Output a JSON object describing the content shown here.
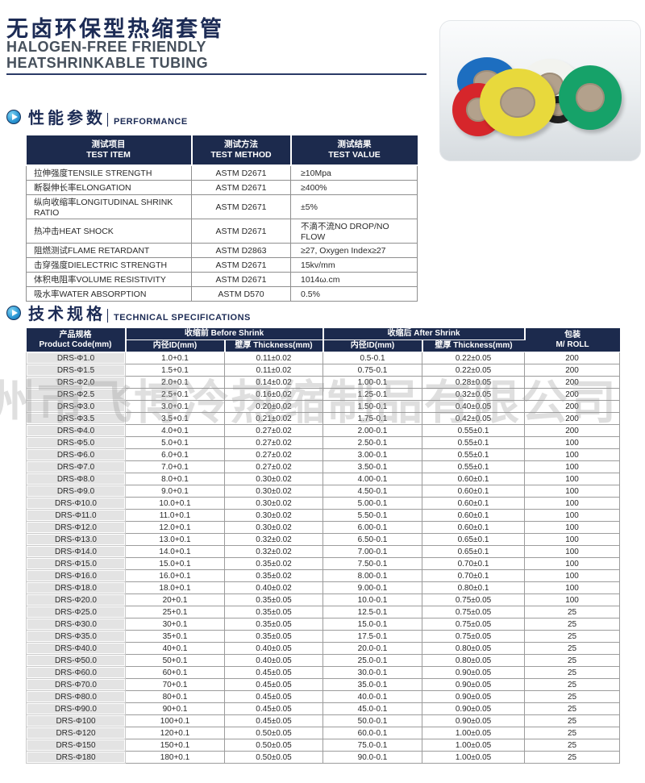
{
  "page": {
    "title_cn": "无卤环保型热缩套管",
    "subtitle_line1": "HALOGEN-FREE FRIENDLY",
    "subtitle_line2": "HEATSHRINKABLE TUBING",
    "watermark": "州市飞博冷热缩制品有限公司"
  },
  "colors": {
    "navy_header": "#1c2a4d",
    "title_navy": "#1c2b55",
    "accent_blue": "#2f9ad6",
    "first_col_gray": "#e3e3e3"
  },
  "sections": {
    "performance": {
      "title_cn": "性能参数",
      "title_en": "PERFORMANCE"
    },
    "specs": {
      "title_cn": "技术规格",
      "title_en": "TECHNICAL SPECIFICATIONS"
    }
  },
  "performance_table": {
    "headers": [
      {
        "cn": "测试项目",
        "en": "TEST ITEM"
      },
      {
        "cn": "测试方法",
        "en": "TEST METHOD"
      },
      {
        "cn": "测试结果",
        "en": "TEST VALUE"
      }
    ],
    "rows": [
      [
        "拉伸强度TENSILE STRENGTH",
        "ASTM D2671",
        "≥10Mpa"
      ],
      [
        "断裂伸长率ELONGATION",
        "ASTM D2671",
        "≥400%"
      ],
      [
        "纵向收缩率LONGITUDINAL SHRINK RATIO",
        "ASTM D2671",
        "±5%"
      ],
      [
        "热冲击HEAT SHOCK",
        "ASTM D2671",
        "不滴不流NO DROP/NO FLOW"
      ],
      [
        "阻燃测试FLAME RETARDANT",
        "ASTM D2863",
        "≥27, Oxygen Index≥27"
      ],
      [
        "击穿强度DIELECTRIC STRENGTH",
        "ASTM D2671",
        "15kv/mm"
      ],
      [
        "体积电阻率VOLUME RESISTIVITY",
        "ASTM D2671",
        "1014ω.cm"
      ],
      [
        "吸水率WATER ABSORPTION",
        "ASTM D570",
        "0.5%"
      ]
    ]
  },
  "spec_table": {
    "header": {
      "product_code_cn": "产品规格",
      "product_code_en": "Product Code(mm)",
      "before_shrink": "收缩前 Before Shrink",
      "after_shrink": "收缩后 After Shrink",
      "id_label": "内径ID(mm)",
      "thickness_label": "壁厚 Thickness(mm)",
      "package_cn": "包装",
      "package_en": "M/ ROLL"
    },
    "rows": [
      [
        "DRS-Φ1.0",
        "1.0+0.1",
        "0.11±0.02",
        "0.5-0.1",
        "0.22±0.05",
        "200"
      ],
      [
        "DRS-Φ1.5",
        "1.5+0.1",
        "0.11±0.02",
        "0.75-0.1",
        "0.22±0.05",
        "200"
      ],
      [
        "DRS-Φ2.0",
        "2.0+0.1",
        "0.14±0.02",
        "1.00-0.1",
        "0.28±0.05",
        "200"
      ],
      [
        "DRS-Φ2.5",
        "2.5+0.1",
        "0.16±0.02",
        "1.25-0.1",
        "0.32±0.05",
        "200"
      ],
      [
        "DRS-Φ3.0",
        "3.0+0.1",
        "0.20±0.02",
        "1.50-0.1",
        "0.40±0.05",
        "200"
      ],
      [
        "DRS-Φ3.5",
        "3.5+0.1",
        "0.21±0.02",
        "1.75-0.1",
        "0.42±0.05",
        "200"
      ],
      [
        "DRS-Φ4.0",
        "4.0+0.1",
        "0.27±0.02",
        "2.00-0.1",
        "0.55±0.1",
        "200"
      ],
      [
        "DRS-Φ5.0",
        "5.0+0.1",
        "0.27±0.02",
        "2.50-0.1",
        "0.55±0.1",
        "100"
      ],
      [
        "DRS-Φ6.0",
        "6.0+0.1",
        "0.27±0.02",
        "3.00-0.1",
        "0.55±0.1",
        "100"
      ],
      [
        "DRS-Φ7.0",
        "7.0+0.1",
        "0.27±0.02",
        "3.50-0.1",
        "0.55±0.1",
        "100"
      ],
      [
        "DRS-Φ8.0",
        "8.0+0.1",
        "0.30±0.02",
        "4.00-0.1",
        "0.60±0.1",
        "100"
      ],
      [
        "DRS-Φ9.0",
        "9.0+0.1",
        "0.30±0.02",
        "4.50-0.1",
        "0.60±0.1",
        "100"
      ],
      [
        "DRS-Φ10.0",
        "10.0+0.1",
        "0.30±0.02",
        "5.00-0.1",
        "0.60±0.1",
        "100"
      ],
      [
        "DRS-Φ11.0",
        "11.0+0.1",
        "0.30±0.02",
        "5.50-0.1",
        "0.60±0.1",
        "100"
      ],
      [
        "DRS-Φ12.0",
        "12.0+0.1",
        "0.30±0.02",
        "6.00-0.1",
        "0.60±0.1",
        "100"
      ],
      [
        "DRS-Φ13.0",
        "13.0+0.1",
        "0.32±0.02",
        "6.50-0.1",
        "0.65±0.1",
        "100"
      ],
      [
        "DRS-Φ14.0",
        "14.0+0.1",
        "0.32±0.02",
        "7.00-0.1",
        "0.65±0.1",
        "100"
      ],
      [
        "DRS-Φ15.0",
        "15.0+0.1",
        "0.35±0.02",
        "7.50-0.1",
        "0.70±0.1",
        "100"
      ],
      [
        "DRS-Φ16.0",
        "16.0+0.1",
        "0.35±0.02",
        "8.00-0.1",
        "0.70±0.1",
        "100"
      ],
      [
        "DRS-Φ18.0",
        "18.0+0.1",
        "0.40±0.02",
        "9.00-0.1",
        "0.80±0.1",
        "100"
      ],
      [
        "DRS-Φ20.0",
        "20+0.1",
        "0.35±0.05",
        "10.0-0.1",
        "0.75±0.05",
        "100"
      ],
      [
        "DRS-Φ25.0",
        "25+0.1",
        "0.35±0.05",
        "12.5-0.1",
        "0.75±0.05",
        "25"
      ],
      [
        "DRS-Φ30.0",
        "30+0.1",
        "0.35±0.05",
        "15.0-0.1",
        "0.75±0.05",
        "25"
      ],
      [
        "DRS-Φ35.0",
        "35+0.1",
        "0.35±0.05",
        "17.5-0.1",
        "0.75±0.05",
        "25"
      ],
      [
        "DRS-Φ40.0",
        "40+0.1",
        "0.40±0.05",
        "20.0-0.1",
        "0.80±0.05",
        "25"
      ],
      [
        "DRS-Φ50.0",
        "50+0.1",
        "0.40±0.05",
        "25.0-0.1",
        "0.80±0.05",
        "25"
      ],
      [
        "DRS-Φ60.0",
        "60+0.1",
        "0.45±0.05",
        "30.0-0.1",
        "0.90±0.05",
        "25"
      ],
      [
        "DRS-Φ70.0",
        "70+0.1",
        "0.45±0.05",
        "35.0-0.1",
        "0.90±0.05",
        "25"
      ],
      [
        "DRS-Φ80.0",
        "80+0.1",
        "0.45±0.05",
        "40.0-0.1",
        "0.90±0.05",
        "25"
      ],
      [
        "DRS-Φ90.0",
        "90+0.1",
        "0.45±0.05",
        "45.0-0.1",
        "0.90±0.05",
        "25"
      ],
      [
        "DRS-Φ100",
        "100+0.1",
        "0.45±0.05",
        "50.0-0.1",
        "0.90±0.05",
        "25"
      ],
      [
        "DRS-Φ120",
        "120+0.1",
        "0.50±0.05",
        "60.0-0.1",
        "1.00±0.05",
        "25"
      ],
      [
        "DRS-Φ150",
        "150+0.1",
        "0.50±0.05",
        "75.0-0.1",
        "1.00±0.05",
        "25"
      ],
      [
        "DRS-Φ180",
        "180+0.1",
        "0.50±0.05",
        "90.0-0.1",
        "1.00±0.05",
        "25"
      ]
    ]
  },
  "product_photo": {
    "description": "colorful heat-shrink tubing rolls",
    "rolls": [
      {
        "name": "blue",
        "color": "#1d6ec0"
      },
      {
        "name": "white",
        "color": "#f2f3ef"
      },
      {
        "name": "black",
        "color": "#212121"
      },
      {
        "name": "red",
        "color": "#d6262b"
      },
      {
        "name": "yellow",
        "color": "#e8d93c"
      },
      {
        "name": "green",
        "color": "#16a269"
      }
    ]
  }
}
